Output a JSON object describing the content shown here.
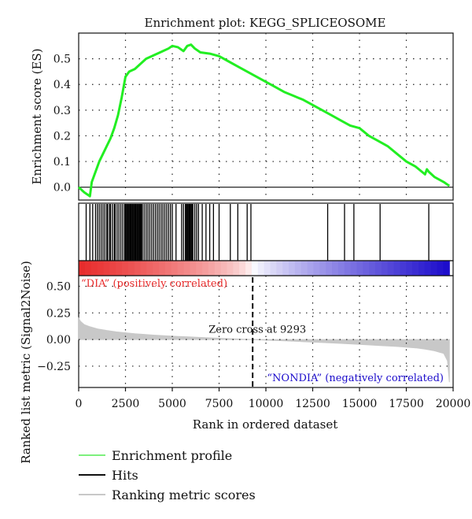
{
  "chart_data": {
    "type": "line",
    "title": "Enrichment plot: KEGG_SPLICEOSOME",
    "xlabel": "Rank in ordered dataset",
    "xlim": [
      0,
      20000
    ],
    "x_ticks": [
      "0",
      "2500",
      "5000",
      "7500",
      "10000",
      "12500",
      "15000",
      "17500",
      "20000"
    ],
    "grid": true,
    "panels": {
      "enrichment": {
        "ylabel": "Enrichment score (ES)",
        "ylim": [
          -0.05,
          0.6
        ],
        "y_ticks": [
          "0.5",
          "0.4",
          "0.3",
          "0.2",
          "0.1",
          "0.0"
        ],
        "series": [
          {
            "name": "Enrichment profile",
            "color": "#22ee22",
            "x": [
              0,
              300,
              600,
              700,
              900,
              1100,
              1300,
              1500,
              1700,
              1900,
              2100,
              2300,
              2500,
              2700,
              3000,
              3300,
              3600,
              3900,
              4200,
              4500,
              4800,
              5000,
              5300,
              5600,
              5800,
              6000,
              6200,
              6500,
              7000,
              7500,
              8000,
              8500,
              9000,
              9500,
              10000,
              10500,
              11000,
              11500,
              12000,
              12500,
              13000,
              13500,
              14000,
              14500,
              15000,
              15500,
              16000,
              16500,
              17000,
              17500,
              18000,
              18500,
              18600,
              18700,
              19000,
              19500,
              19800
            ],
            "y": [
              0.0,
              -0.02,
              -0.035,
              0.02,
              0.06,
              0.1,
              0.13,
              0.16,
              0.19,
              0.23,
              0.28,
              0.35,
              0.43,
              0.45,
              0.46,
              0.48,
              0.5,
              0.51,
              0.52,
              0.53,
              0.54,
              0.55,
              0.545,
              0.53,
              0.55,
              0.555,
              0.54,
              0.525,
              0.52,
              0.51,
              0.49,
              0.47,
              0.45,
              0.43,
              0.41,
              0.39,
              0.37,
              0.355,
              0.34,
              0.32,
              0.3,
              0.28,
              0.26,
              0.24,
              0.23,
              0.2,
              0.18,
              0.16,
              0.13,
              0.1,
              0.08,
              0.05,
              0.07,
              0.06,
              0.04,
              0.02,
              0.005
            ]
          }
        ]
      },
      "hits": {
        "series_name": "Hits",
        "color": "#000000",
        "positions": [
          400,
          600,
          750,
          900,
          1000,
          1100,
          1200,
          1300,
          1400,
          1500,
          1550,
          1650,
          1700,
          1800,
          1900,
          1950,
          2050,
          2150,
          2250,
          2350,
          2450,
          2500,
          2550,
          2600,
          2650,
          2700,
          2750,
          2800,
          2850,
          2900,
          2950,
          3000,
          3050,
          3100,
          3150,
          3200,
          3250,
          3300,
          3350,
          3400,
          3500,
          3600,
          3700,
          3800,
          3900,
          4000,
          4100,
          4200,
          4300,
          4400,
          4500,
          4600,
          4700,
          4800,
          4900,
          5000,
          5200,
          5500,
          5600,
          5700,
          5750,
          5800,
          5850,
          5900,
          5950,
          6000,
          6050,
          6100,
          6200,
          6300,
          6400,
          6600,
          6800,
          7000,
          7200,
          7500,
          8100,
          8500,
          9000,
          9200,
          13300,
          14200,
          14700,
          16100,
          18700
        ]
      },
      "ranking": {
        "series_name": "Ranking metric scores",
        "color": "#c8c8c8",
        "ylabel": "Ranked list metric (Signal2Noise)",
        "ylim": [
          -0.45,
          0.6
        ],
        "y_ticks": [
          "0.50",
          "0.25",
          "0.00",
          "−0.25"
        ],
        "x": [
          0,
          100,
          300,
          600,
          1000,
          1500,
          2000,
          3000,
          4000,
          5000,
          6000,
          7000,
          8000,
          9293,
          10000,
          11000,
          12000,
          13000,
          14000,
          15000,
          16000,
          17000,
          18000,
          18500,
          19000,
          19500,
          19700,
          19800
        ],
        "y": [
          0.2,
          0.17,
          0.14,
          0.12,
          0.1,
          0.085,
          0.072,
          0.055,
          0.042,
          0.032,
          0.024,
          0.016,
          0.008,
          0.0,
          -0.005,
          -0.012,
          -0.02,
          -0.028,
          -0.036,
          -0.045,
          -0.055,
          -0.065,
          -0.078,
          -0.09,
          -0.105,
          -0.13,
          -0.2,
          -0.4
        ],
        "annotations": {
          "positive": "“DIA” (positively correlated)",
          "negative": "“NONDIA” (negatively correlated)",
          "zero_cross": "Zero cross at 9293",
          "zero_cross_x": 9293
        }
      }
    },
    "legend": [
      "Enrichment profile",
      "Hits",
      "Ranking metric scores"
    ],
    "colors": {
      "positive": "#e82a2a",
      "negative": "#1a0acb",
      "neutral": "#ffffff"
    }
  }
}
